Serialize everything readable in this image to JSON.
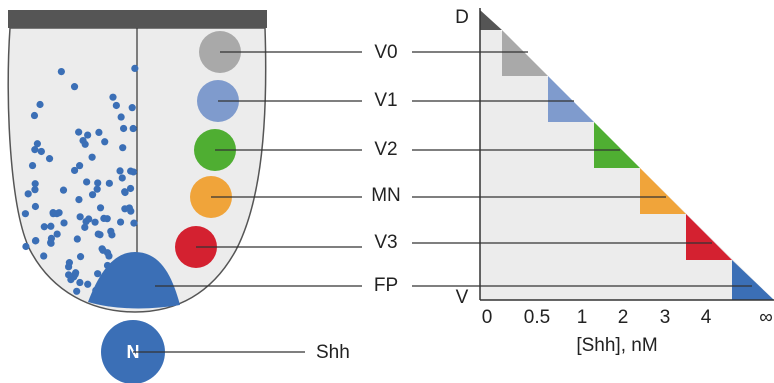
{
  "domains": [
    "V0",
    "V1",
    "V2",
    "MN",
    "V3",
    "FP"
  ],
  "source": {
    "node": "N",
    "label": "Shh"
  },
  "axis": {
    "dorsal": "D",
    "ventral": "V",
    "ticks": [
      "0",
      "0.5",
      "1",
      "2",
      "3",
      "4",
      "∞"
    ],
    "title": "[Shh], nM"
  }
}
